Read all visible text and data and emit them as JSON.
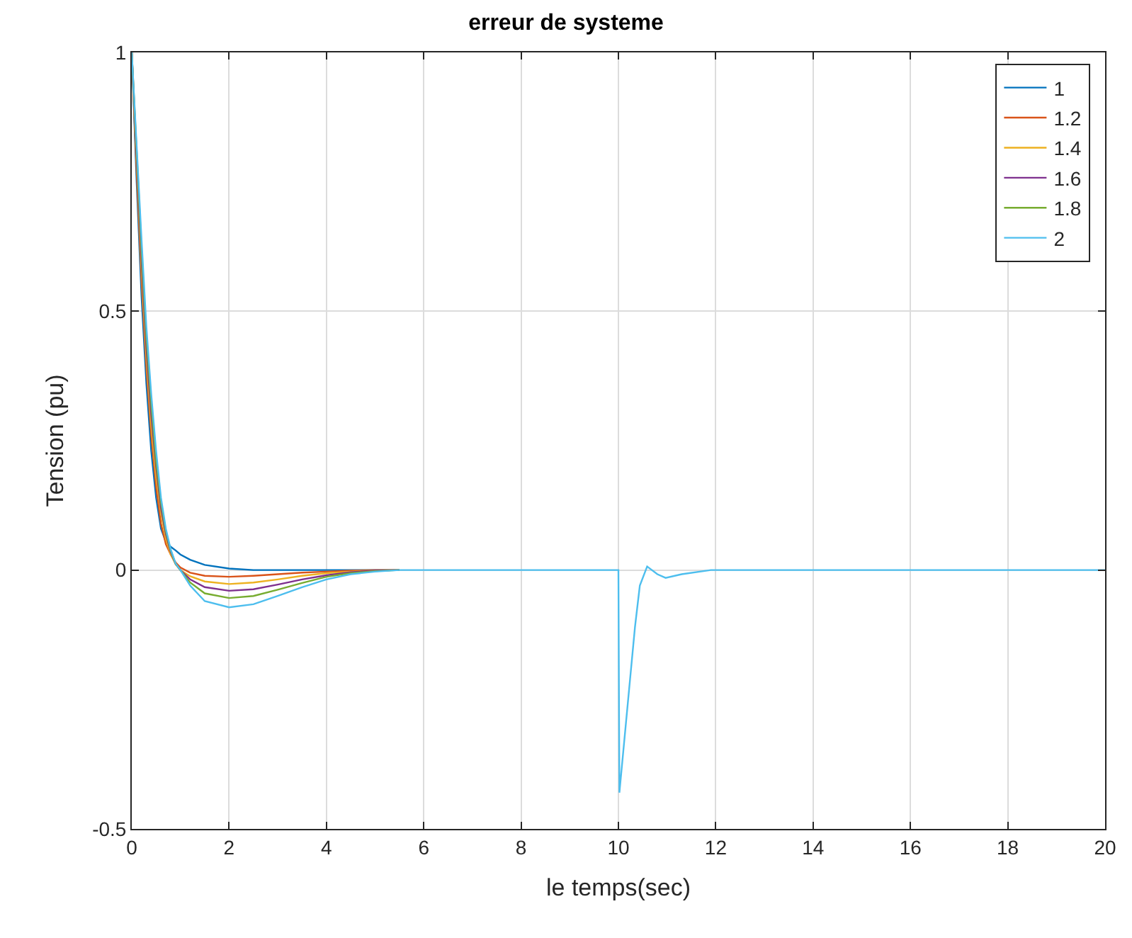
{
  "chart_data": {
    "type": "line",
    "title": "erreur de systeme",
    "xlabel": "le temps(sec)",
    "ylabel": "Tension (pu)",
    "xlim": [
      0,
      20
    ],
    "xticks": [
      0,
      2,
      4,
      6,
      8,
      10,
      12,
      14,
      16,
      18,
      20
    ],
    "ylim": [
      -0.5,
      1
    ],
    "yticks": [
      -0.5,
      0,
      0.5,
      1
    ],
    "grid": true,
    "legend": "top right",
    "line_style": "solid",
    "marker": "none",
    "series": [
      {
        "name": "1",
        "color": "#0072bd",
        "x": [
          0,
          0.1,
          0.2,
          0.3,
          0.4,
          0.5,
          0.6,
          0.7,
          0.8,
          0.9,
          1.0,
          1.2,
          1.5,
          2,
          2.5,
          3,
          3.5,
          4,
          4.5,
          5,
          5.5
        ],
        "values": [
          1,
          0.75,
          0.53,
          0.36,
          0.23,
          0.14,
          0.08,
          0.055,
          0.045,
          0.038,
          0.03,
          0.02,
          0.01,
          0.003,
          0,
          0,
          0,
          0,
          0,
          0,
          0
        ]
      },
      {
        "name": "1.2",
        "color": "#d95319",
        "x": [
          0,
          0.1,
          0.2,
          0.3,
          0.4,
          0.5,
          0.6,
          0.7,
          0.8,
          0.9,
          1.0,
          1.2,
          1.5,
          2,
          2.5,
          3,
          3.5,
          4,
          4.5,
          5,
          5.5
        ],
        "values": [
          1,
          0.77,
          0.56,
          0.39,
          0.26,
          0.16,
          0.09,
          0.05,
          0.03,
          0.015,
          0.005,
          -0.005,
          -0.011,
          -0.013,
          -0.011,
          -0.008,
          -0.005,
          -0.003,
          -0.001,
          0,
          0
        ]
      },
      {
        "name": "1.4",
        "color": "#edb120",
        "x": [
          0,
          0.1,
          0.2,
          0.3,
          0.4,
          0.5,
          0.6,
          0.7,
          0.8,
          0.9,
          1.0,
          1.2,
          1.5,
          2,
          2.5,
          3,
          3.5,
          4,
          4.5,
          5,
          5.5
        ],
        "values": [
          1,
          0.79,
          0.58,
          0.41,
          0.28,
          0.18,
          0.11,
          0.06,
          0.03,
          0.012,
          0,
          -0.012,
          -0.022,
          -0.027,
          -0.024,
          -0.018,
          -0.011,
          -0.006,
          -0.003,
          -0.001,
          0
        ]
      },
      {
        "name": "1.6",
        "color": "#7e2f8e",
        "x": [
          0,
          0.1,
          0.2,
          0.3,
          0.4,
          0.5,
          0.6,
          0.7,
          0.8,
          0.9,
          1.0,
          1.2,
          1.5,
          2,
          2.5,
          3,
          3.5,
          4,
          4.5,
          5,
          5.5
        ],
        "values": [
          1,
          0.8,
          0.6,
          0.43,
          0.3,
          0.2,
          0.12,
          0.07,
          0.035,
          0.012,
          0,
          -0.018,
          -0.033,
          -0.04,
          -0.037,
          -0.028,
          -0.018,
          -0.01,
          -0.004,
          -0.001,
          0
        ]
      },
      {
        "name": "1.8",
        "color": "#77ac30",
        "x": [
          0,
          0.1,
          0.2,
          0.3,
          0.4,
          0.5,
          0.6,
          0.7,
          0.8,
          0.9,
          1.0,
          1.2,
          1.5,
          2,
          2.5,
          3,
          3.5,
          4,
          4.5,
          5,
          5.5
        ],
        "values": [
          1,
          0.81,
          0.62,
          0.45,
          0.32,
          0.21,
          0.13,
          0.075,
          0.038,
          0.012,
          0,
          -0.024,
          -0.045,
          -0.054,
          -0.05,
          -0.038,
          -0.025,
          -0.013,
          -0.006,
          -0.002,
          0
        ]
      },
      {
        "name": "2",
        "color": "#4dbeee",
        "x": [
          0,
          0.1,
          0.2,
          0.3,
          0.4,
          0.5,
          0.6,
          0.7,
          0.8,
          0.9,
          1.0,
          1.2,
          1.5,
          2,
          2.5,
          3,
          3.5,
          4,
          4.5,
          5,
          5.5,
          10,
          10.02,
          10.2,
          10.34,
          10.44,
          10.59,
          10.8,
          10.97,
          11.3,
          11.9,
          20
        ],
        "values": [
          1,
          0.82,
          0.64,
          0.47,
          0.34,
          0.23,
          0.14,
          0.08,
          0.04,
          0.013,
          0,
          -0.03,
          -0.06,
          -0.072,
          -0.066,
          -0.05,
          -0.033,
          -0.018,
          -0.008,
          -0.003,
          0,
          0,
          -0.43,
          -0.25,
          -0.11,
          -0.03,
          0.007,
          -0.008,
          -0.015,
          -0.008,
          0,
          0
        ]
      }
    ]
  }
}
